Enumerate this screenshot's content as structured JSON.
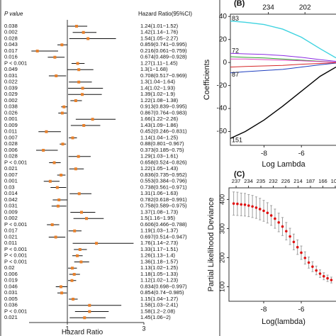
{
  "chart_data": [
    {
      "type": "forest",
      "column_headers": [
        "P value",
        "Hazard Ratio(95%CI)"
      ],
      "xlabel": "Hazard Ratio",
      "p_values": [
        "0.038",
        "0.002",
        "0.028",
        "0.043",
        "0.017",
        "0.016",
        "P < 0.001",
        "0.049",
        "0.031",
        "0.022",
        "0.039",
        "0.029",
        "0.002",
        "0.038",
        "0.026",
        "0.001",
        "0.009",
        "0.011",
        "0.007",
        "0.028",
        "0.006",
        "0.028",
        "P < 0.001",
        "0.021",
        "0.007",
        "0.001",
        "0.03",
        "0.014",
        "0.042",
        "0.031",
        "0.009",
        "0.002",
        "P < 0.001",
        "0.017",
        "0.021",
        "0.011",
        "P < 0.001",
        "P < 0.001",
        "P < 0.001",
        "0.02",
        "0.006",
        "0.019",
        "0.046",
        "0.031",
        "0.005",
        "0.036",
        "P < 0.001",
        "0.021"
      ],
      "values": [
        1.24,
        1.42,
        1.54,
        0.859,
        0.216,
        0.674,
        1.27,
        1.3,
        0.708,
        1.3,
        1.4,
        1.39,
        1.22,
        0.913,
        0.867,
        1.66,
        1.43,
        0.452,
        1.14,
        0.88,
        0.373,
        1.29,
        0.658,
        1.22,
        0.836,
        0.553,
        0.738,
        1.31,
        0.782,
        0.758,
        1.37,
        1.5,
        0.606,
        1.19,
        0.697,
        1.76,
        1.33,
        1.26,
        1.36,
        1.13,
        1.18,
        1.12,
        0.834,
        0.854,
        1.15,
        1.58,
        1.58,
        1.45
      ],
      "lower": [
        1.01,
        1.14,
        1.05,
        0.741,
        0.061,
        0.489,
        1.11,
        1,
        0.517,
        1.04,
        1.02,
        1.02,
        1.08,
        0.839,
        0.764,
        1.22,
        1.09,
        0.246,
        1.04,
        0.801,
        0.185,
        1.03,
        0.524,
        1.05,
        0.735,
        0.384,
        0.561,
        1.06,
        0.618,
        0.589,
        1.08,
        1.16,
        0.466,
        1.03,
        0.514,
        1.14,
        1.17,
        1.13,
        1.18,
        1.02,
        1.05,
        1.02,
        0.698,
        0.74,
        1.04,
        1.03,
        1.2,
        1.06
      ],
      "upper": [
        1.52,
        1.76,
        2.27,
        0.995,
        0.759,
        0.928,
        1.45,
        1.68,
        0.969,
        1.64,
        1.93,
        1.9,
        1.38,
        0.995,
        0.983,
        2.26,
        1.86,
        0.831,
        1.25,
        0.967,
        0.75,
        1.61,
        0.826,
        1.43,
        0.952,
        0.796,
        0.971,
        1.63,
        0.991,
        0.975,
        1.73,
        1.95,
        0.788,
        1.37,
        0.947,
        2.73,
        1.51,
        1.4,
        1.57,
        1.25,
        1.33,
        1.23,
        0.997,
        0.985,
        1.27,
        2.41,
        2.08,
        2
      ],
      "value_labels": [
        "1.24(1.01−1.52)",
        "1.42(1.14−1.76)",
        "1.54(1.05−2.27)",
        "0.859(0.741−0.995)",
        "0.216(0.061−0.759)",
        "0.674(0.489−0.928)",
        "1.27(1.11−1.45)",
        "1.3(1−1.68)",
        "0.708(0.517−0.969)",
        "1.3(1.04−1.64)",
        "1.4(1.02−1.93)",
        "1.39(1.02−1.9)",
        "1.22(1.08−1.38)",
        "0.913(0.839−0.995)",
        "0.867(0.764−0.983)",
        "1.66(1.22−2.26)",
        "1.43(1.09−1.86)",
        "0.452(0.246−0.831)",
        "1.14(1.04−1.25)",
        "0.88(0.801−0.967)",
        "0.373(0.185−0.75)",
        "1.29(1.03−1.61)",
        "0.658(0.524−0.826)",
        "1.22(1.05−1.43)",
        "0.836(0.735−0.952)",
        "0.553(0.384−0.796)",
        "0.738(0.561−0.971)",
        "1.31(1.06−1.63)",
        "0.782(0.618−0.991)",
        "0.758(0.589−0.975)",
        "1.37(1.08−1.73)",
        "1.5(1.16−1.95)",
        "0.606(0.466−0.788)",
        "1.19(1.03−1.37)",
        "0.697(0.514−0.947)",
        "1.76(1.14−2.73)",
        "1.33(1.17−1.51)",
        "1.26(1.13−1.4)",
        "1.36(1.18−1.57)",
        "1.13(1.02−1.25)",
        "1.18(1.05−1.33)",
        "1.12(1.02−1.23)",
        "0.834(0.698−0.997)",
        "0.854(0.74−0.985)",
        "1.15(1.04−1.27)",
        "1.58(1.03−2.41)",
        "1.58(1.2−2.08)",
        "1.45(1.06−2)"
      ],
      "xlim": [
        0,
        3
      ],
      "xticks": [
        1,
        3
      ],
      "reference_line": 1,
      "color": "#e8812c"
    },
    {
      "type": "line",
      "panel_label": "(B)",
      "xlabel": "Log Lambda",
      "ylabel": "Coefficients",
      "x": [
        -9.8,
        -9,
        -8,
        -7,
        -6,
        -5,
        -4.15
      ],
      "series": [
        {
          "label": "83",
          "color": "#3fd3e0",
          "values": [
            36,
            35,
            33,
            29,
            22,
            12,
            4
          ]
        },
        {
          "label": "151",
          "color": "#000000",
          "values": [
            -66,
            -60,
            -50,
            -38,
            -25,
            -12,
            -4
          ]
        },
        {
          "label": "72",
          "color": "#8a2be2",
          "values": [
            8,
            7.5,
            7,
            6,
            4.5,
            2.5,
            1
          ]
        },
        {
          "label": "87",
          "color": "#1f3fbf",
          "values": [
            -9,
            -8,
            -7,
            -6,
            -4,
            -2,
            -0.5
          ]
        },
        {
          "color": "#2ca02c",
          "values": [
            5,
            4.5,
            4,
            3,
            2,
            1,
            0.3
          ]
        },
        {
          "color": "#e040c0",
          "values": [
            3,
            3,
            2.5,
            2,
            1.5,
            0.8,
            0.2
          ]
        },
        {
          "color": "#d62728",
          "values": [
            -4,
            -3.5,
            -3,
            -2.5,
            -1.5,
            -0.8,
            -0.2
          ]
        }
      ],
      "xlim": [
        -9.8,
        -4.15
      ],
      "ylim": [
        -72,
        42
      ],
      "xticks": [
        -8,
        -6
      ],
      "yticks": [
        -60,
        -40,
        -20,
        0,
        20,
        40
      ],
      "top_ticks": [
        {
          "value": -7.77,
          "label": "234"
        },
        {
          "value": -5.81,
          "label": "202"
        }
      ]
    },
    {
      "type": "errorbar",
      "panel_label": "(C)",
      "xlabel": "Log(lambda)",
      "ylabel": "Partial Likelihood Deviance",
      "x": [
        -9.6,
        -9.4,
        -9.2,
        -9,
        -8.8,
        -8.6,
        -8.4,
        -8.2,
        -8,
        -7.8,
        -7.6,
        -7.4,
        -7.2,
        -7,
        -6.8,
        -6.6,
        -6.4,
        -6.2,
        -6,
        -5.8,
        -5.6,
        -5.4,
        -5.2,
        -5,
        -4.8,
        -4.6,
        -4.4
      ],
      "values": [
        386,
        385,
        383,
        382,
        379,
        376,
        372,
        367,
        361,
        354,
        345,
        334,
        321,
        307,
        291,
        273,
        254,
        236,
        217,
        199,
        183,
        169,
        156,
        145,
        136,
        129,
        123
      ],
      "errors": [
        40,
        40,
        39,
        39,
        38,
        38,
        37,
        37,
        36,
        35,
        34,
        33,
        32,
        31,
        30,
        28,
        27,
        25,
        23,
        21,
        19,
        17,
        15,
        13,
        12,
        11,
        10
      ],
      "color": "#e01010",
      "error_color": "#a0a0a0",
      "xlim": [
        -9.85,
        -4.15
      ],
      "ylim": [
        50,
        440
      ],
      "xticks": [
        -8,
        -6
      ],
      "yticks": [
        100,
        200,
        300,
        400
      ],
      "top_ticks": [
        {
          "value": -9.47,
          "label": "237"
        },
        {
          "value": -8.81,
          "label": "234"
        },
        {
          "value": -8.15,
          "label": "235"
        },
        {
          "value": -7.49,
          "label": "232"
        },
        {
          "value": -6.83,
          "label": "226"
        },
        {
          "value": -6.17,
          "label": "214"
        },
        {
          "value": -5.51,
          "label": "187"
        },
        {
          "value": -4.85,
          "label": "166"
        },
        {
          "value": -4.19,
          "label": "107"
        }
      ]
    }
  ]
}
